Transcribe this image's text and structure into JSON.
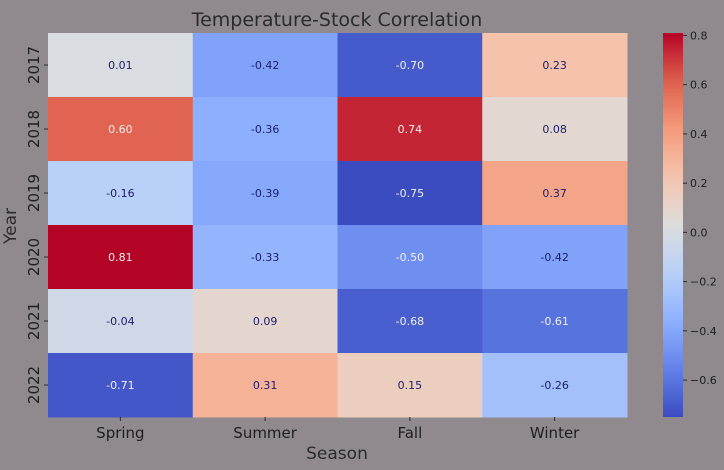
{
  "chart_data": {
    "type": "heatmap",
    "title": "Temperature-Stock Correlation",
    "xlabel": "Season",
    "ylabel": "Year",
    "x_categories": [
      "Spring",
      "Summer",
      "Fall",
      "Winter"
    ],
    "y_categories": [
      "2017",
      "2018",
      "2019",
      "2020",
      "2021",
      "2022"
    ],
    "values": [
      [
        0.01,
        -0.42,
        -0.7,
        0.23
      ],
      [
        0.6,
        -0.36,
        0.74,
        0.08
      ],
      [
        -0.16,
        -0.39,
        -0.75,
        0.37
      ],
      [
        0.81,
        -0.33,
        -0.5,
        -0.42
      ],
      [
        -0.04,
        0.09,
        -0.68,
        -0.61
      ],
      [
        -0.71,
        0.31,
        0.15,
        -0.26
      ]
    ],
    "value_labels": [
      [
        "0.01",
        "-0.42",
        "-0.70",
        "0.23"
      ],
      [
        "0.60",
        "-0.36",
        "0.74",
        "0.08"
      ],
      [
        "-0.16",
        "-0.39",
        "-0.75",
        "0.37"
      ],
      [
        "0.81",
        "-0.33",
        "-0.50",
        "-0.42"
      ],
      [
        "-0.04",
        "0.09",
        "-0.68",
        "-0.61"
      ],
      [
        "-0.71",
        "0.31",
        "0.15",
        "-0.26"
      ]
    ],
    "colormap": "coolwarm",
    "color_range": [
      -0.75,
      0.81
    ],
    "colorbar": {
      "ticks": [
        0.8,
        0.6,
        0.4,
        0.2,
        0.0,
        -0.2,
        -0.4,
        -0.6
      ],
      "tick_labels": [
        "0.8",
        "0.6",
        "0.4",
        "0.2",
        "0.0",
        "−0.2",
        "−0.4",
        "−0.6"
      ]
    },
    "colors": {
      "background": "#908a8e",
      "dark_text": "#1d1d6b",
      "light_text": "#f0f0f0"
    }
  }
}
